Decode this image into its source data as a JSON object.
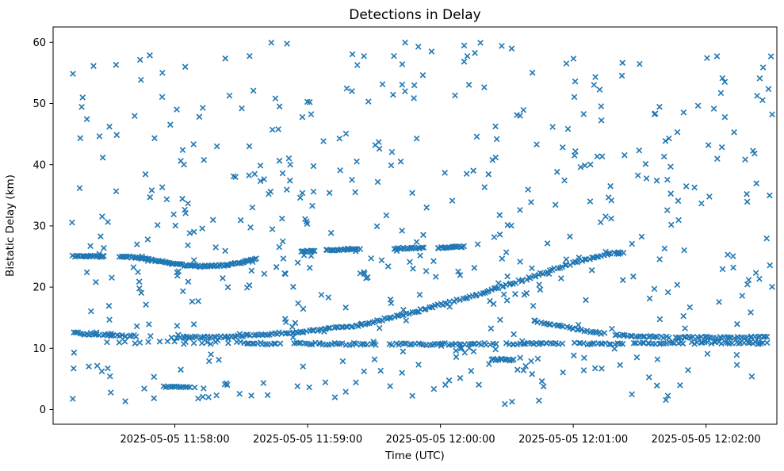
{
  "figure": {
    "background": "#ffffff"
  },
  "colors": {
    "marker": "#1f77b4",
    "axis": "#000000",
    "background": "#ffffff"
  },
  "chart_data": {
    "type": "scatter",
    "title": "Detections in Delay",
    "xlabel": "Time (UTC)",
    "ylabel": "Bistatic Delay (km)",
    "x_unit_note": "x values are seconds after 2025-05-05 11:57:00 UTC",
    "xlim": [
      5,
      332
    ],
    "ylim": [
      -2.4,
      62.5
    ],
    "grid": false,
    "legend": null,
    "marker": {
      "shape": "x",
      "color": "#1f77b4",
      "size": 6.5,
      "stroke_width": 1.6
    },
    "x_ticks": [
      {
        "t": 60,
        "label": "2025-05-05 11:58:00"
      },
      {
        "t": 120,
        "label": "2025-05-05 11:59:00"
      },
      {
        "t": 180,
        "label": "2025-05-05 12:00:00"
      },
      {
        "t": 240,
        "label": "2025-05-05 12:01:00"
      },
      {
        "t": 300,
        "label": "2025-05-05 12:02:00"
      }
    ],
    "y_ticks": [
      {
        "v": 0,
        "label": "0"
      },
      {
        "v": 10,
        "label": "10"
      },
      {
        "v": 20,
        "label": "20"
      },
      {
        "v": 30,
        "label": "30"
      },
      {
        "v": 40,
        "label": "40"
      },
      {
        "v": 50,
        "label": "50"
      },
      {
        "v": 60,
        "label": "60"
      }
    ],
    "tracks": [
      {
        "name": "target-track-rising",
        "t_range": [
          14,
          263
        ],
        "step": 1.1,
        "jitter_t": 0.5,
        "jitter_v": 0.16,
        "gaps": [
          [
            43,
            61
          ]
        ],
        "control_points": [
          [
            14,
            12.55
          ],
          [
            25,
            12.2
          ],
          [
            40,
            12.0
          ],
          [
            55,
            11.85
          ],
          [
            70,
            11.8
          ],
          [
            85,
            11.95
          ],
          [
            100,
            12.25
          ],
          [
            115,
            12.65
          ],
          [
            130,
            13.2
          ],
          [
            145,
            13.9
          ],
          [
            160,
            15.2
          ],
          [
            175,
            16.6
          ],
          [
            190,
            18.1
          ],
          [
            205,
            19.7
          ],
          [
            220,
            21.5
          ],
          [
            235,
            23.4
          ],
          [
            245,
            24.5
          ],
          [
            253,
            25.2
          ],
          [
            258,
            25.5
          ],
          [
            263,
            25.7
          ]
        ]
      },
      {
        "name": "track-upper-left-arc",
        "t_range": [
          14,
          97
        ],
        "step": 0.75,
        "jitter_t": 0.35,
        "jitter_v": 0.12,
        "gaps": [
          [
            29,
            34.5
          ]
        ],
        "control_points": [
          [
            14,
            25.1
          ],
          [
            22,
            25.05
          ],
          [
            28,
            25.0
          ],
          [
            35,
            25.0
          ],
          [
            42,
            24.85
          ],
          [
            48,
            24.55
          ],
          [
            54,
            24.15
          ],
          [
            60,
            23.8
          ],
          [
            66,
            23.5
          ],
          [
            72,
            23.4
          ],
          [
            78,
            23.45
          ],
          [
            84,
            23.65
          ],
          [
            89,
            23.95
          ],
          [
            93,
            24.3
          ],
          [
            97,
            24.75
          ]
        ]
      },
      {
        "name": "track-upper-segments-26",
        "t_range": [
          117,
          191
        ],
        "step": 0.8,
        "jitter_t": 0.35,
        "jitter_v": 0.11,
        "gaps": [
          [
            124,
            127.5
          ],
          [
            144,
            159
          ],
          [
            173,
            178.5
          ]
        ],
        "control_points": [
          [
            117,
            25.85
          ],
          [
            123,
            25.95
          ],
          [
            128,
            26.0
          ],
          [
            136,
            26.1
          ],
          [
            143,
            26.15
          ],
          [
            159,
            26.3
          ],
          [
            166,
            26.35
          ],
          [
            172,
            26.4
          ],
          [
            179,
            26.45
          ],
          [
            186,
            26.55
          ],
          [
            191,
            26.6
          ]
        ]
      },
      {
        "name": "track-10point7-early-sparse",
        "t_range": [
          30,
          91
        ],
        "step": 3.8,
        "jitter_t": 1.2,
        "jitter_v": 0.22,
        "gaps": [],
        "control_points": [
          [
            30,
            11.05
          ],
          [
            60,
            10.95
          ],
          [
            91,
            10.85
          ]
        ]
      },
      {
        "name": "track-10point7-main",
        "t_range": [
          91,
          328
        ],
        "step": 1.25,
        "jitter_t": 0.5,
        "jitter_v": 0.16,
        "gaps": [
          [
            108,
            113
          ],
          [
            152,
            157
          ],
          [
            205,
            209
          ],
          [
            236,
            240
          ],
          [
            263,
            267
          ],
          [
            290,
            293
          ]
        ],
        "control_points": [
          [
            91,
            10.85
          ],
          [
            130,
            10.72
          ],
          [
            170,
            10.68
          ],
          [
            210,
            10.72
          ],
          [
            250,
            10.78
          ],
          [
            290,
            10.85
          ],
          [
            328,
            10.95
          ]
        ]
      },
      {
        "name": "track-descending-right",
        "t_range": [
          222,
          328
        ],
        "step": 1.15,
        "jitter_t": 0.5,
        "jitter_v": 0.14,
        "gaps": [
          [
            255,
            258
          ],
          [
            283,
            286
          ]
        ],
        "control_points": [
          [
            222,
            14.55
          ],
          [
            231,
            13.85
          ],
          [
            240,
            13.2
          ],
          [
            249,
            12.65
          ],
          [
            258,
            12.25
          ],
          [
            267,
            12.0
          ],
          [
            278,
            11.85
          ],
          [
            295,
            11.78
          ],
          [
            310,
            11.8
          ],
          [
            328,
            11.9
          ]
        ]
      },
      {
        "name": "cluster-3point7",
        "t_range": [
          55,
          67
        ],
        "step": 1.0,
        "jitter_t": 0.3,
        "jitter_v": 0.08,
        "gaps": [],
        "control_points": [
          [
            55,
            3.75
          ],
          [
            67,
            3.65
          ]
        ]
      },
      {
        "name": "cluster-8point1",
        "t_range": [
          203,
          214
        ],
        "step": 0.85,
        "jitter_t": 0.3,
        "jitter_v": 0.14,
        "gaps": [],
        "control_points": [
          [
            203,
            8.2
          ],
          [
            214,
            8.05
          ]
        ]
      }
    ],
    "extra_points": [
      [
        49,
        12.0
      ],
      [
        58.5,
        11.75
      ],
      [
        61.5,
        12.2
      ],
      [
        69,
        3.6
      ],
      [
        73,
        3.45
      ],
      [
        187,
        9.6
      ],
      [
        189,
        9.95
      ],
      [
        191,
        9.3
      ],
      [
        193,
        10.05
      ],
      [
        195,
        9.5
      ],
      [
        216,
        8.45
      ],
      [
        218.5,
        7.1
      ],
      [
        221,
        7.9
      ],
      [
        224,
        8.3
      ]
    ],
    "clutter": {
      "count": 510,
      "t_range": [
        13,
        330
      ],
      "v_range": [
        0.7,
        60.0
      ],
      "seed": 20250505,
      "distribution": "uniform"
    }
  }
}
